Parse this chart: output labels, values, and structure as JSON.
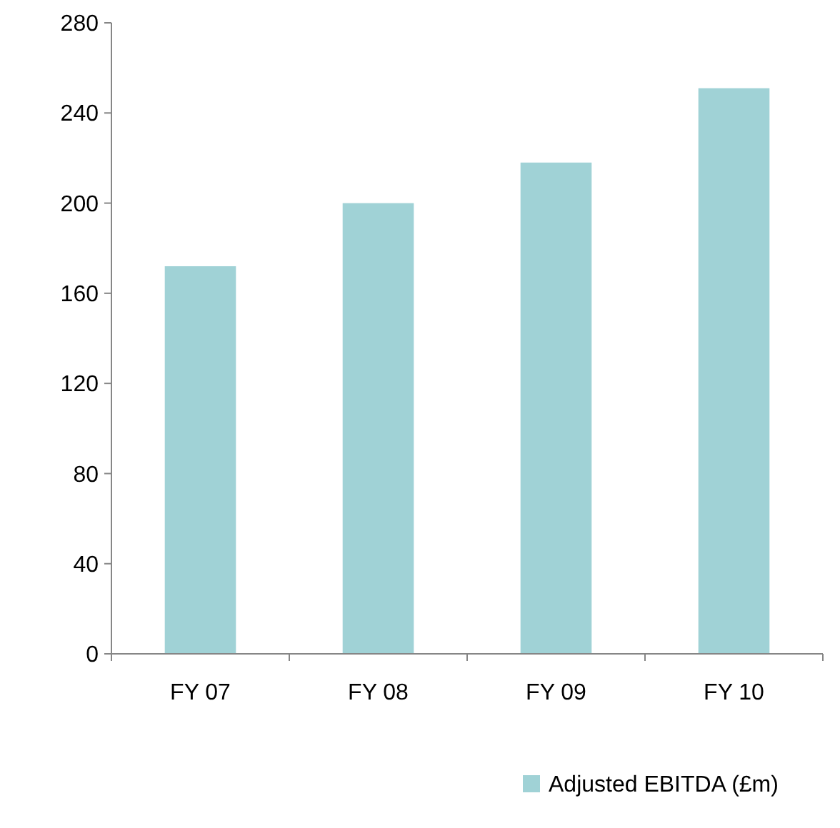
{
  "chart_data": {
    "type": "bar",
    "categories": [
      "FY 07",
      "FY 08",
      "FY 09",
      "FY 10"
    ],
    "series": [
      {
        "name": "Adjusted EBITDA (£m)",
        "color": "#a0d2d6",
        "values": [
          172,
          200,
          218,
          251
        ]
      }
    ],
    "ylim": [
      0,
      280
    ],
    "yticks": [
      0,
      40,
      80,
      120,
      160,
      200,
      240,
      280
    ],
    "grid": false,
    "legend": "bottom"
  }
}
